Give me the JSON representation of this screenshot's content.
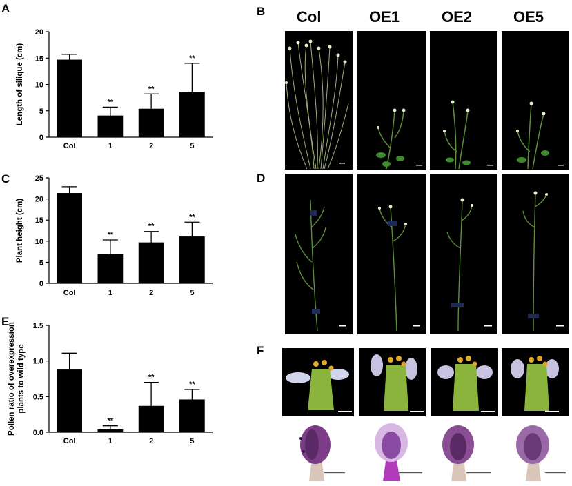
{
  "figure": {
    "panel_letters": {
      "a": "A",
      "b": "B",
      "c": "C",
      "d": "D",
      "e": "E",
      "f": "F"
    },
    "genotypes": [
      "Col",
      "OE1",
      "OE2",
      "OE5"
    ]
  },
  "chart_data": [
    {
      "panel": "A",
      "type": "bar",
      "categories": [
        "Col",
        "1",
        "2",
        "5"
      ],
      "values": [
        14.7,
        4.1,
        5.4,
        8.6
      ],
      "errors": [
        1.0,
        1.6,
        2.8,
        5.4
      ],
      "significance": [
        "",
        "**",
        "**",
        "**"
      ],
      "ylabel": "Length of silique (cm)",
      "ylim": [
        0,
        20
      ],
      "yticks": [
        "0",
        "5",
        "10",
        "15",
        "20"
      ]
    },
    {
      "panel": "C",
      "type": "bar",
      "categories": [
        "Col",
        "1",
        "2",
        "5"
      ],
      "values": [
        21.4,
        6.9,
        9.7,
        11.1
      ],
      "errors": [
        1.5,
        3.4,
        2.6,
        3.4
      ],
      "significance": [
        "",
        "**",
        "**",
        "**"
      ],
      "ylabel": "Plant height (cm)",
      "ylim": [
        0,
        25
      ],
      "yticks": [
        "0",
        "5",
        "10",
        "15",
        "20",
        "25"
      ]
    },
    {
      "panel": "E",
      "type": "bar",
      "categories": [
        "Col",
        "1",
        "2",
        "5"
      ],
      "values": [
        0.88,
        0.04,
        0.37,
        0.46
      ],
      "errors": [
        0.23,
        0.05,
        0.33,
        0.14
      ],
      "significance": [
        "",
        "**",
        "**",
        "**"
      ],
      "ylabel": "Pollen ratio of overexpression plants to wild type",
      "ylabel_lines": [
        "Pollen ratio of overexpression",
        "plants to wild type"
      ],
      "ylim": [
        0,
        1.5
      ],
      "yticks": [
        "0.0",
        "0.5",
        "1.0",
        "1.5"
      ]
    }
  ],
  "colors": {
    "bar": "#000000",
    "photo_background": "#000000",
    "stem_green": "#5e8f3a",
    "flower_green": "#8bb43c",
    "petal": "#c8c2e0",
    "anther": "#e0a82a",
    "anther_purple": "#7c3c88",
    "scale_bar": "#ffffff"
  }
}
